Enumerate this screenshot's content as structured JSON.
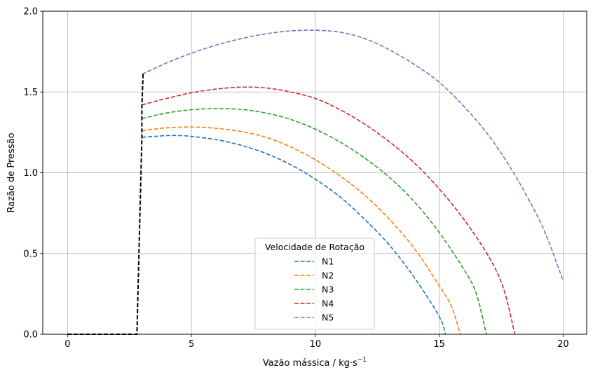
{
  "chart_data": {
    "type": "line",
    "title": "",
    "xlabel": "Vazão mássica / kg·s",
    "xlabel_exponent": "−1",
    "ylabel": "Razão de Pressão",
    "xlim": [
      -1,
      20.95
    ],
    "ylim": [
      0,
      2.0
    ],
    "xticks": [
      0,
      5,
      10,
      15,
      20
    ],
    "xtick_labels": [
      "0",
      "5",
      "10",
      "15",
      "20"
    ],
    "yticks": [
      0.0,
      0.5,
      1.0,
      1.5,
      2.0
    ],
    "ytick_labels": [
      "0.0",
      "0.5",
      "1.0",
      "1.5",
      "2.0"
    ],
    "grid": true,
    "legend": {
      "title": "Velocidade de Rotação",
      "location": "lower center"
    },
    "series": [
      {
        "name": "N1",
        "color": "#1f77b4",
        "style": "dashed",
        "points": [
          [
            3.0,
            1.22
          ],
          [
            3.5,
            1.225
          ],
          [
            4.0,
            1.23
          ],
          [
            4.5,
            1.23
          ],
          [
            5.0,
            1.225
          ],
          [
            6.0,
            1.205
          ],
          [
            7.0,
            1.17
          ],
          [
            8.0,
            1.12
          ],
          [
            9.0,
            1.05
          ],
          [
            10.0,
            0.96
          ],
          [
            11.0,
            0.85
          ],
          [
            12.0,
            0.71
          ],
          [
            13.0,
            0.55
          ],
          [
            14.0,
            0.35
          ],
          [
            15.0,
            0.11
          ],
          [
            15.25,
            0.0
          ]
        ]
      },
      {
        "name": "N2",
        "color": "#ff7f0e",
        "style": "dashed",
        "points": [
          [
            3.0,
            1.26
          ],
          [
            3.5,
            1.27
          ],
          [
            4.0,
            1.278
          ],
          [
            5.0,
            1.283
          ],
          [
            6.0,
            1.275
          ],
          [
            7.0,
            1.255
          ],
          [
            8.0,
            1.22
          ],
          [
            9.0,
            1.16
          ],
          [
            10.0,
            1.08
          ],
          [
            11.0,
            0.98
          ],
          [
            12.0,
            0.86
          ],
          [
            13.0,
            0.71
          ],
          [
            14.0,
            0.53
          ],
          [
            15.0,
            0.3
          ],
          [
            15.5,
            0.17
          ],
          [
            15.85,
            0.0
          ]
        ]
      },
      {
        "name": "N3",
        "color": "#2ca02c",
        "style": "dashed",
        "points": [
          [
            3.0,
            1.335
          ],
          [
            4.0,
            1.37
          ],
          [
            5.0,
            1.39
          ],
          [
            6.0,
            1.397
          ],
          [
            7.0,
            1.392
          ],
          [
            8.0,
            1.37
          ],
          [
            9.0,
            1.33
          ],
          [
            10.0,
            1.27
          ],
          [
            11.0,
            1.19
          ],
          [
            12.0,
            1.09
          ],
          [
            13.0,
            0.97
          ],
          [
            14.0,
            0.82
          ],
          [
            15.0,
            0.63
          ],
          [
            16.0,
            0.4
          ],
          [
            16.5,
            0.25
          ],
          [
            16.9,
            0.0
          ]
        ]
      },
      {
        "name": "N4",
        "color": "#d62728",
        "style": "dashed",
        "points": [
          [
            3.0,
            1.42
          ],
          [
            4.0,
            1.46
          ],
          [
            5.0,
            1.495
          ],
          [
            6.0,
            1.518
          ],
          [
            7.0,
            1.53
          ],
          [
            8.0,
            1.525
          ],
          [
            9.0,
            1.5
          ],
          [
            10.0,
            1.46
          ],
          [
            11.0,
            1.39
          ],
          [
            12.0,
            1.3
          ],
          [
            13.0,
            1.19
          ],
          [
            14.0,
            1.06
          ],
          [
            15.0,
            0.9
          ],
          [
            16.0,
            0.71
          ],
          [
            17.0,
            0.48
          ],
          [
            17.6,
            0.28
          ],
          [
            18.05,
            0.0
          ]
        ]
      },
      {
        "name": "N5",
        "color": "#9467bd",
        "style": "dashed",
        "points": [
          [
            3.0,
            1.61
          ],
          [
            4.0,
            1.68
          ],
          [
            5.0,
            1.74
          ],
          [
            6.0,
            1.79
          ],
          [
            7.0,
            1.83
          ],
          [
            8.0,
            1.86
          ],
          [
            9.0,
            1.878
          ],
          [
            10.0,
            1.882
          ],
          [
            11.0,
            1.87
          ],
          [
            12.0,
            1.83
          ],
          [
            13.0,
            1.76
          ],
          [
            14.0,
            1.67
          ],
          [
            15.0,
            1.56
          ],
          [
            16.0,
            1.41
          ],
          [
            17.0,
            1.23
          ],
          [
            18.0,
            1.0
          ],
          [
            19.0,
            0.72
          ],
          [
            19.5,
            0.54
          ],
          [
            20.0,
            0.33
          ]
        ]
      }
    ],
    "surge_line": {
      "color": "#000000",
      "style": "dashed",
      "points": [
        [
          0.0,
          0.0
        ],
        [
          2.8,
          0.0
        ],
        [
          3.0,
          1.22
        ],
        [
          3.0,
          1.26
        ],
        [
          3.0,
          1.335
        ],
        [
          3.0,
          1.42
        ],
        [
          3.05,
          1.61
        ]
      ]
    }
  }
}
